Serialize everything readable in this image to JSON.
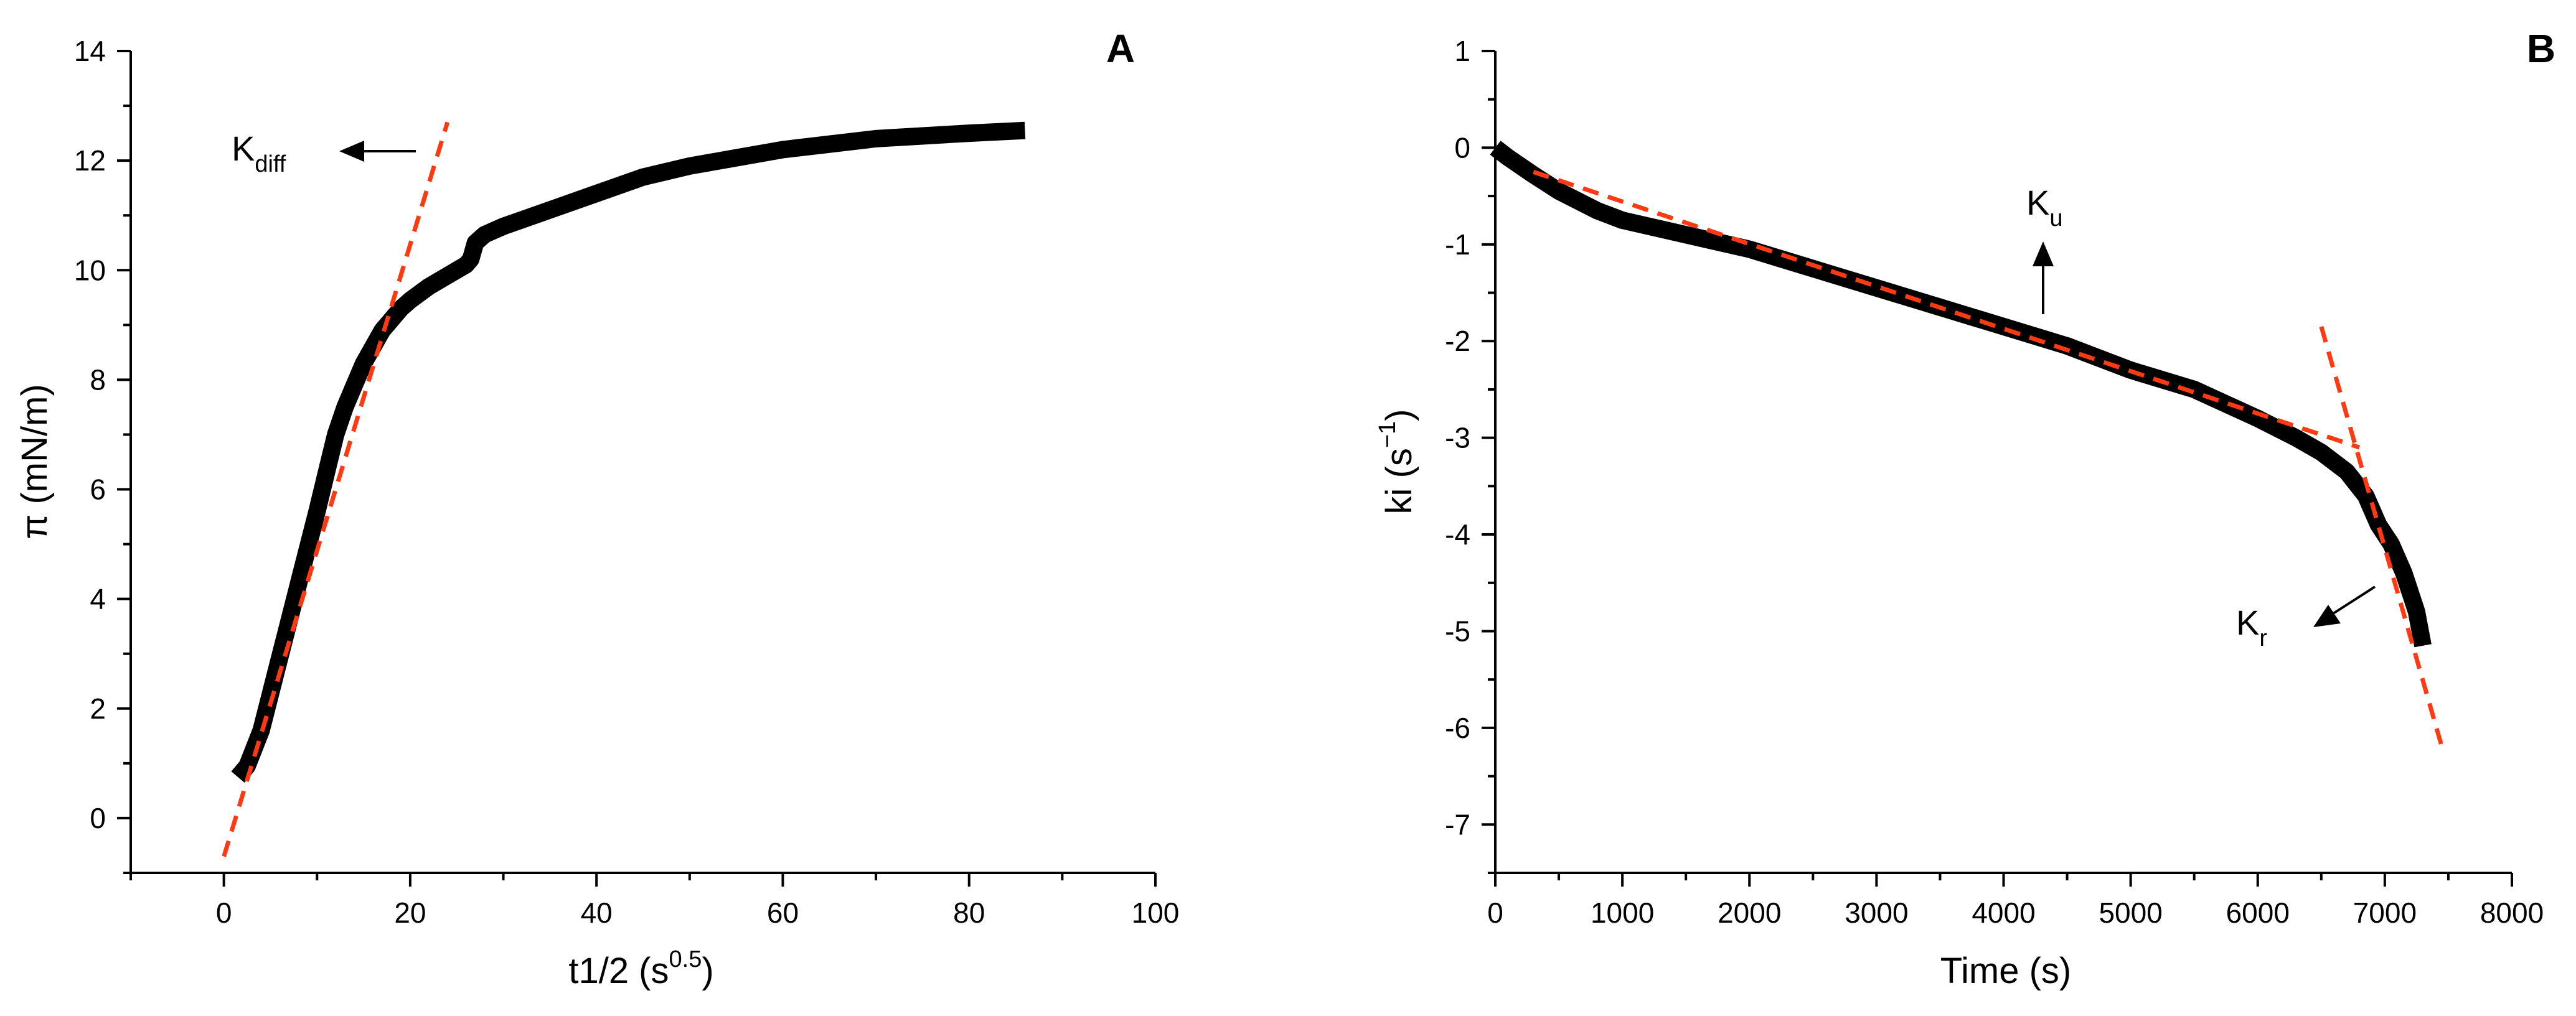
{
  "chart_data": [
    {
      "type": "line",
      "panel_label": "A",
      "xlabel_main": "t1/2 (s",
      "xlabel_sup": "0.5",
      "xlabel_tail": ")",
      "ylabel": "π (mN/m)",
      "xlim": [
        -10,
        100
      ],
      "ylim": [
        -1,
        14
      ],
      "x_ticks": [
        "0",
        "20",
        "40",
        "60",
        "80",
        "100"
      ],
      "y_ticks": [
        "0",
        "2",
        "4",
        "6",
        "8",
        "10",
        "12",
        "14"
      ],
      "series": [
        {
          "points": [
            [
              1.5,
              0.75
            ],
            [
              2.5,
              0.95
            ],
            [
              4,
              1.6
            ],
            [
              5.5,
              2.6
            ],
            [
              7,
              3.6
            ],
            [
              8.5,
              4.6
            ],
            [
              10,
              5.6
            ],
            [
              11,
              6.3
            ],
            [
              12,
              7.0
            ],
            [
              13,
              7.5
            ],
            [
              14,
              7.9
            ],
            [
              15,
              8.3
            ],
            [
              16,
              8.6
            ],
            [
              17,
              8.9
            ],
            [
              18,
              9.1
            ],
            [
              19,
              9.3
            ],
            [
              20,
              9.45
            ],
            [
              22,
              9.7
            ],
            [
              24,
              9.9
            ],
            [
              26,
              10.1
            ],
            [
              26.5,
              10.2
            ],
            [
              27,
              10.5
            ],
            [
              28,
              10.65
            ],
            [
              30,
              10.8
            ],
            [
              35,
              11.1
            ],
            [
              40,
              11.4
            ],
            [
              45,
              11.7
            ],
            [
              50,
              11.9
            ],
            [
              55,
              12.05
            ],
            [
              60,
              12.2
            ],
            [
              65,
              12.3
            ],
            [
              70,
              12.4
            ],
            [
              75,
              12.45
            ],
            [
              80,
              12.5
            ],
            [
              86,
              12.55
            ]
          ]
        }
      ],
      "fit_lines": [
        {
          "name": "K_diff",
          "from": [
            0,
            -0.7
          ],
          "to": [
            24,
            12.7
          ]
        }
      ],
      "annotations": [
        {
          "label_main": "K",
          "label_sub": "diff"
        }
      ]
    },
    {
      "type": "line",
      "panel_label": "B",
      "xlabel": "Time (s)",
      "ylabel_main": "ki (s",
      "ylabel_sup": "−1",
      "ylabel_tail": ")",
      "xlim": [
        0,
        8000
      ],
      "ylim": [
        -7.5,
        1
      ],
      "x_ticks": [
        "0",
        "1000",
        "2000",
        "3000",
        "4000",
        "5000",
        "6000",
        "7000",
        "8000"
      ],
      "y_ticks": [
        "1",
        "0",
        "-1",
        "-2",
        "-3",
        "-4",
        "-5",
        "-6",
        "-7"
      ],
      "series": [
        {
          "points": [
            [
              0,
              0
            ],
            [
              100,
              -0.1
            ],
            [
              300,
              -0.28
            ],
            [
              500,
              -0.45
            ],
            [
              800,
              -0.65
            ],
            [
              1000,
              -0.75
            ],
            [
              1500,
              -0.9
            ],
            [
              2000,
              -1.05
            ],
            [
              2500,
              -1.25
            ],
            [
              3000,
              -1.45
            ],
            [
              3500,
              -1.65
            ],
            [
              4000,
              -1.85
            ],
            [
              4500,
              -2.05
            ],
            [
              5000,
              -2.3
            ],
            [
              5500,
              -2.5
            ],
            [
              6000,
              -2.8
            ],
            [
              6300,
              -3.0
            ],
            [
              6500,
              -3.15
            ],
            [
              6700,
              -3.35
            ],
            [
              6850,
              -3.6
            ],
            [
              6950,
              -3.9
            ],
            [
              7050,
              -4.1
            ],
            [
              7150,
              -4.4
            ],
            [
              7250,
              -4.8
            ],
            [
              7300,
              -5.15
            ]
          ]
        }
      ],
      "fit_lines": [
        {
          "name": "K_u",
          "from": [
            300,
            -0.25
          ],
          "to": [
            6800,
            -3.1
          ]
        },
        {
          "name": "K_r",
          "from": [
            6500,
            -1.85
          ],
          "to": [
            7450,
            -6.2
          ]
        }
      ],
      "annotations": [
        {
          "label_main": "K",
          "label_sub": "u"
        },
        {
          "label_main": "K",
          "label_sub": "r"
        }
      ]
    }
  ]
}
